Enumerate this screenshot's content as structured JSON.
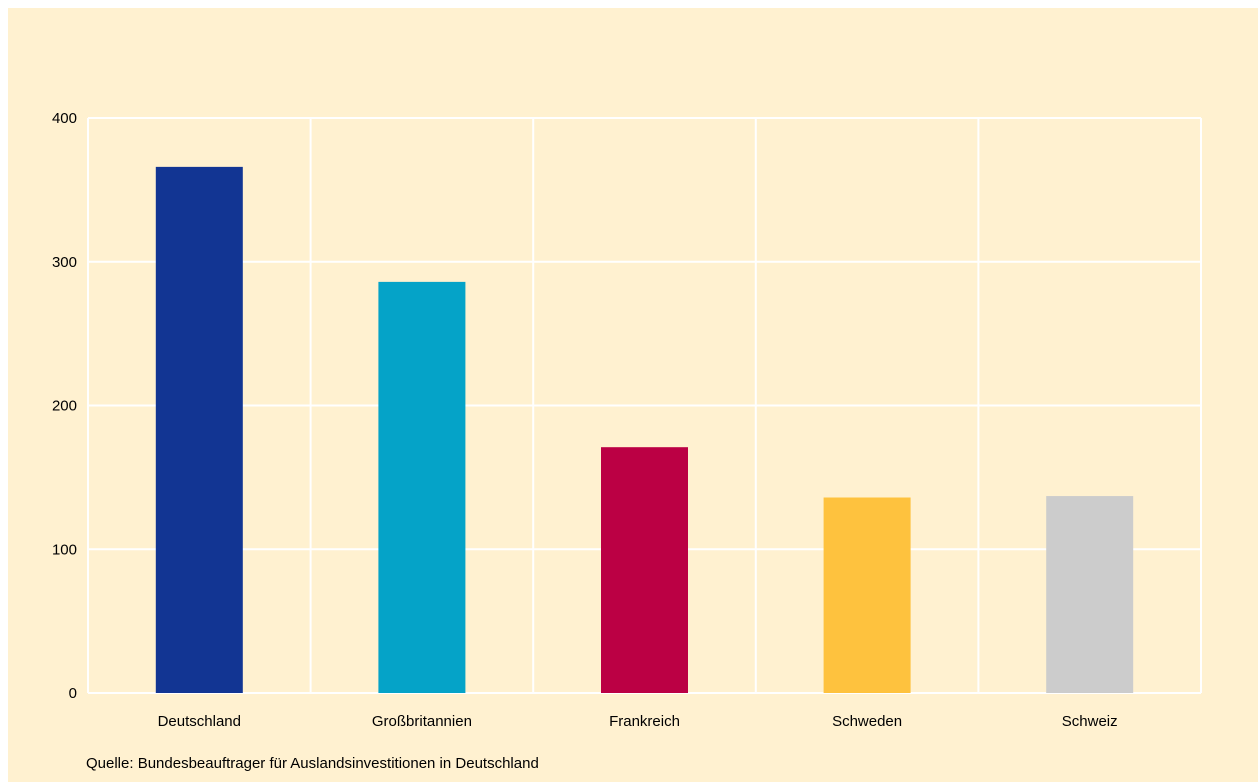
{
  "chart_data": {
    "type": "bar",
    "categories": [
      "Deutschland",
      "Großbritannien",
      "Frankreich",
      "Schweden",
      "Schweiz"
    ],
    "values": [
      366,
      286,
      171,
      136,
      137
    ],
    "ylim": [
      0,
      400
    ],
    "yticks": [
      0,
      100,
      200,
      300,
      400
    ],
    "grid": true,
    "colors": [
      "#123593",
      "#05a3c8",
      "#bb0044",
      "#fec23e",
      "#cccccc"
    ],
    "background": "#fff1d0",
    "grid_color": "#ffffff"
  },
  "source": "Quelle: Bundesbeauftrager für Auslandsinvestitionen in Deutschland"
}
